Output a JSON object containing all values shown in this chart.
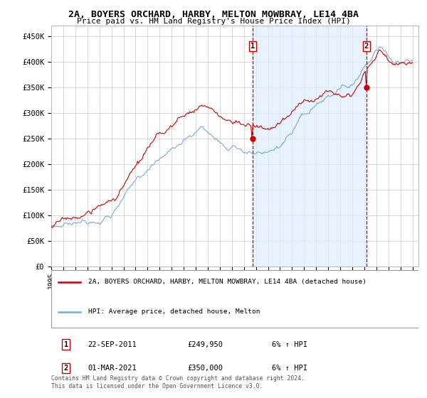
{
  "title_line1": "2A, BOYERS ORCHARD, HARBY, MELTON MOWBRAY, LE14 4BA",
  "title_line2": "Price paid vs. HM Land Registry's House Price Index (HPI)",
  "ylabel_ticks": [
    "£0",
    "£50K",
    "£100K",
    "£150K",
    "£200K",
    "£250K",
    "£300K",
    "£350K",
    "£400K",
    "£450K"
  ],
  "ytick_values": [
    0,
    50000,
    100000,
    150000,
    200000,
    250000,
    300000,
    350000,
    400000,
    450000
  ],
  "ylim": [
    0,
    470000
  ],
  "xlim_start": 1995.0,
  "xlim_end": 2025.5,
  "legend_line1": "2A, BOYERS ORCHARD, HARBY, MELTON MOWBRAY, LE14 4BA (detached house)",
  "legend_line2": "HPI: Average price, detached house, Melton",
  "marker1_x": 2011.73,
  "marker1_y": 249950,
  "marker2_x": 2021.17,
  "marker2_y": 350000,
  "marker1_label": "1",
  "marker2_label": "2",
  "ann1_date": "22-SEP-2011",
  "ann1_price": "£249,950",
  "ann1_hpi": "6% ↑ HPI",
  "ann2_date": "01-MAR-2021",
  "ann2_price": "£350,000",
  "ann2_hpi": "6% ↑ HPI",
  "footer": "Contains HM Land Registry data © Crown copyright and database right 2024.\nThis data is licensed under the Open Government Licence v3.0.",
  "property_color": "#cc0000",
  "hpi_color": "#7aadcf",
  "shade_color": "#ddeeff",
  "background_color": "#ffffff",
  "grid_color": "#cccccc"
}
